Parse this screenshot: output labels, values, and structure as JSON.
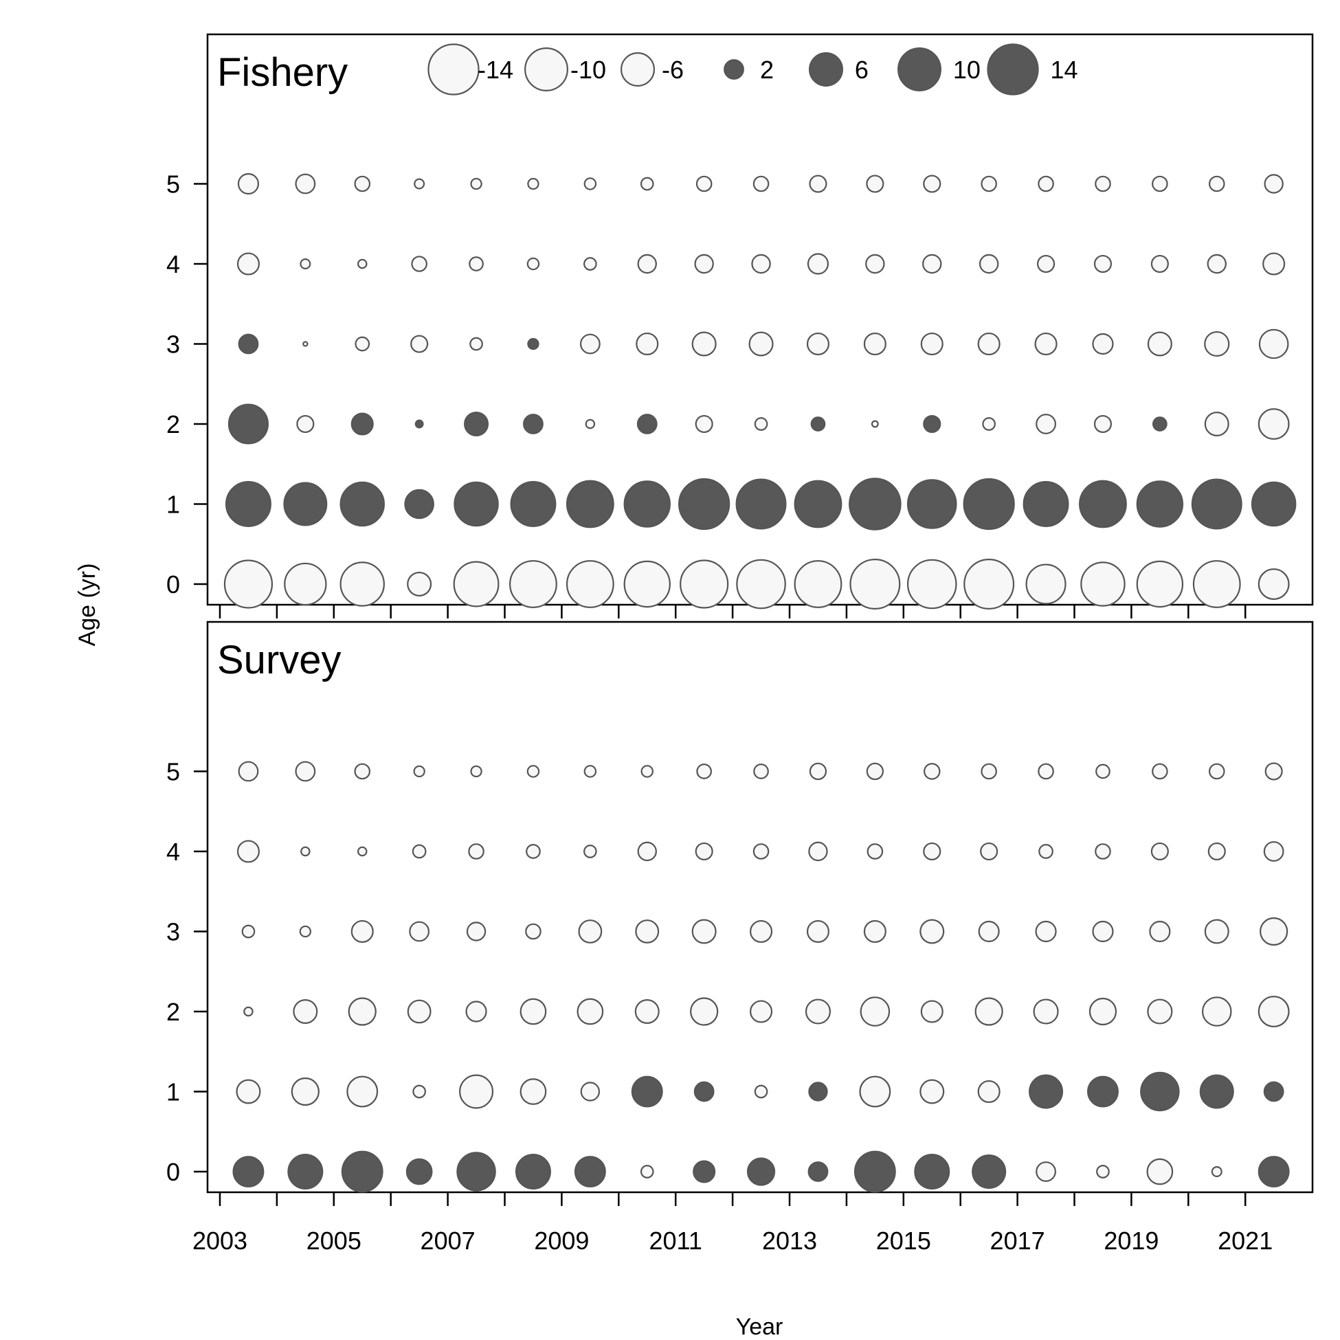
{
  "chart_data": {
    "type": "scatter",
    "subtype": "bubble",
    "xlabel": "Year",
    "ylabel": "Age (yr)",
    "x_tick_labels": [
      "2003",
      "2005",
      "2007",
      "2009",
      "2011",
      "2013",
      "2015",
      "2017",
      "2019",
      "2021"
    ],
    "x_minor_ticks": [
      2003,
      2004,
      2005,
      2006,
      2007,
      2008,
      2009,
      2010,
      2011,
      2012,
      2013,
      2014,
      2015,
      2016,
      2017,
      2018,
      2019,
      2020,
      2021
    ],
    "y_tick_labels": [
      "0",
      "1",
      "2",
      "3",
      "4",
      "5"
    ],
    "years": [
      2003.5,
      2004.5,
      2005.5,
      2006.5,
      2007.5,
      2008.5,
      2009.5,
      2010.5,
      2011.5,
      2012.5,
      2013.5,
      2014.5,
      2015.5,
      2016.5,
      2017.5,
      2018.5,
      2019.5,
      2020.5,
      2021.5
    ],
    "ages": [
      0,
      1,
      2,
      3,
      4,
      5
    ],
    "legend": {
      "values": [
        -14,
        -10,
        -6,
        2,
        6,
        10,
        14
      ],
      "labels": [
        "-14",
        "-10",
        "-6",
        "2",
        "6",
        "10",
        "14"
      ]
    },
    "colors": {
      "positive_fill": "#4a4a4a",
      "negative_fill": "#f7f7f7",
      "stroke": "#555555"
    },
    "panels": [
      {
        "title": "Fishery",
        "residuals": {
          "age_0": [
            -12.5,
            -9.5,
            -10.5,
            -3.0,
            -11.0,
            -12.0,
            -12.0,
            -11.5,
            -12.5,
            -13.0,
            -12.0,
            -13.5,
            -13.0,
            -13.5,
            -8.5,
            -10.5,
            -11.5,
            -12.0,
            -5.0
          ],
          "age_1": [
            11.0,
            10.0,
            10.5,
            4.5,
            10.5,
            11.0,
            12.0,
            11.5,
            14.0,
            13.5,
            12.0,
            14.5,
            13.0,
            14.0,
            11.0,
            12.0,
            11.5,
            13.5,
            10.5
          ],
          "age_2": [
            8.5,
            -1.5,
            2.5,
            0.3,
            3.0,
            2.0,
            -0.4,
            2.0,
            -1.5,
            -0.8,
            1.0,
            -0.2,
            1.5,
            -0.8,
            -2.0,
            -1.5,
            1.0,
            -3.0,
            -5.0
          ],
          "age_3": [
            2.0,
            -0.1,
            -1.0,
            -1.5,
            -0.8,
            0.6,
            -2.0,
            -2.5,
            -3.0,
            -3.0,
            -2.5,
            -2.5,
            -2.5,
            -2.5,
            -2.5,
            -2.2,
            -3.0,
            -3.2,
            -4.5
          ],
          "age_4": [
            -2.5,
            -0.5,
            -0.4,
            -1.2,
            -1.0,
            -0.7,
            -0.8,
            -1.8,
            -1.8,
            -1.8,
            -2.2,
            -1.8,
            -1.8,
            -1.8,
            -1.5,
            -1.5,
            -1.5,
            -1.8,
            -2.5
          ],
          "age_5": [
            -2.2,
            -2.0,
            -1.2,
            -0.5,
            -0.6,
            -0.6,
            -0.7,
            -0.8,
            -1.2,
            -1.2,
            -1.5,
            -1.5,
            -1.5,
            -1.2,
            -1.2,
            -1.2,
            -1.2,
            -1.2,
            -1.8
          ]
        }
      },
      {
        "title": "Survey",
        "residuals": {
          "age_0": [
            5.0,
            6.5,
            9.0,
            3.5,
            8.0,
            6.5,
            5.0,
            -0.8,
            2.5,
            4.0,
            2.0,
            9.0,
            6.5,
            6.0,
            -2.0,
            -0.8,
            -3.5,
            -0.5,
            5.0
          ],
          "age_1": [
            -3.0,
            -4.0,
            -5.0,
            -0.8,
            -6.0,
            -3.5,
            -1.8,
            5.0,
            2.0,
            -0.8,
            1.8,
            -5.0,
            -3.0,
            -2.5,
            6.0,
            5.0,
            8.0,
            6.0,
            2.0
          ],
          "age_2": [
            -0.4,
            -3.0,
            -4.0,
            -2.8,
            -2.2,
            -3.5,
            -3.5,
            -3.0,
            -4.0,
            -2.5,
            -3.2,
            -4.5,
            -2.5,
            -4.0,
            -3.2,
            -3.8,
            -3.2,
            -4.5,
            -5.0
          ],
          "age_3": [
            -0.8,
            -0.6,
            -2.5,
            -2.0,
            -1.8,
            -1.2,
            -2.8,
            -2.8,
            -3.0,
            -2.5,
            -2.5,
            -2.5,
            -3.0,
            -2.2,
            -2.2,
            -2.2,
            -2.2,
            -3.0,
            -4.0
          ],
          "age_4": [
            -2.5,
            -0.4,
            -0.4,
            -0.9,
            -1.2,
            -1.0,
            -0.8,
            -1.8,
            -1.5,
            -1.2,
            -1.8,
            -1.2,
            -1.5,
            -1.5,
            -1.0,
            -1.2,
            -1.5,
            -1.5,
            -2.0
          ],
          "age_5": [
            -2.0,
            -2.0,
            -1.2,
            -0.6,
            -0.6,
            -0.7,
            -0.7,
            -0.7,
            -1.1,
            -1.1,
            -1.4,
            -1.4,
            -1.3,
            -1.2,
            -1.2,
            -1.0,
            -1.2,
            -1.2,
            -1.5
          ]
        }
      }
    ]
  }
}
